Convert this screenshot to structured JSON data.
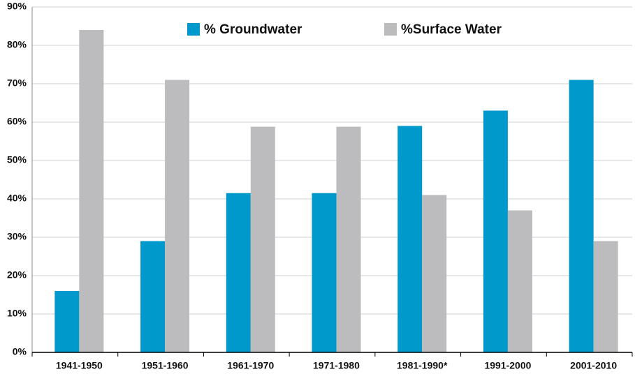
{
  "chart_data": {
    "type": "bar",
    "categories": [
      "1941-1950",
      "1951-1960",
      "1961-1970",
      "1971-1980",
      "1981-1990*",
      "1991-2000",
      "2001-2010"
    ],
    "series": [
      {
        "name": "% Groundwater",
        "color": "#0099cc",
        "values": [
          16,
          29,
          41.5,
          41.5,
          59,
          63,
          71
        ]
      },
      {
        "name": "%Surface Water",
        "color": "#bcbcbf",
        "values": [
          84,
          71,
          58.8,
          58.8,
          41,
          37,
          29
        ]
      }
    ],
    "ylim": [
      0,
      90
    ],
    "yticks": [
      {
        "value": 0,
        "label": "0%"
      },
      {
        "value": 10,
        "label": "10%"
      },
      {
        "value": 20,
        "label": "20%"
      },
      {
        "value": 30,
        "label": "30%"
      },
      {
        "value": 40,
        "label": "40%"
      },
      {
        "value": 50,
        "label": "50%"
      },
      {
        "value": 60,
        "label": "60%"
      },
      {
        "value": 70,
        "label": "70%"
      },
      {
        "value": 80,
        "label": "80%"
      },
      {
        "value": 90,
        "label": "90%"
      }
    ],
    "grid": true,
    "legend": "top"
  }
}
